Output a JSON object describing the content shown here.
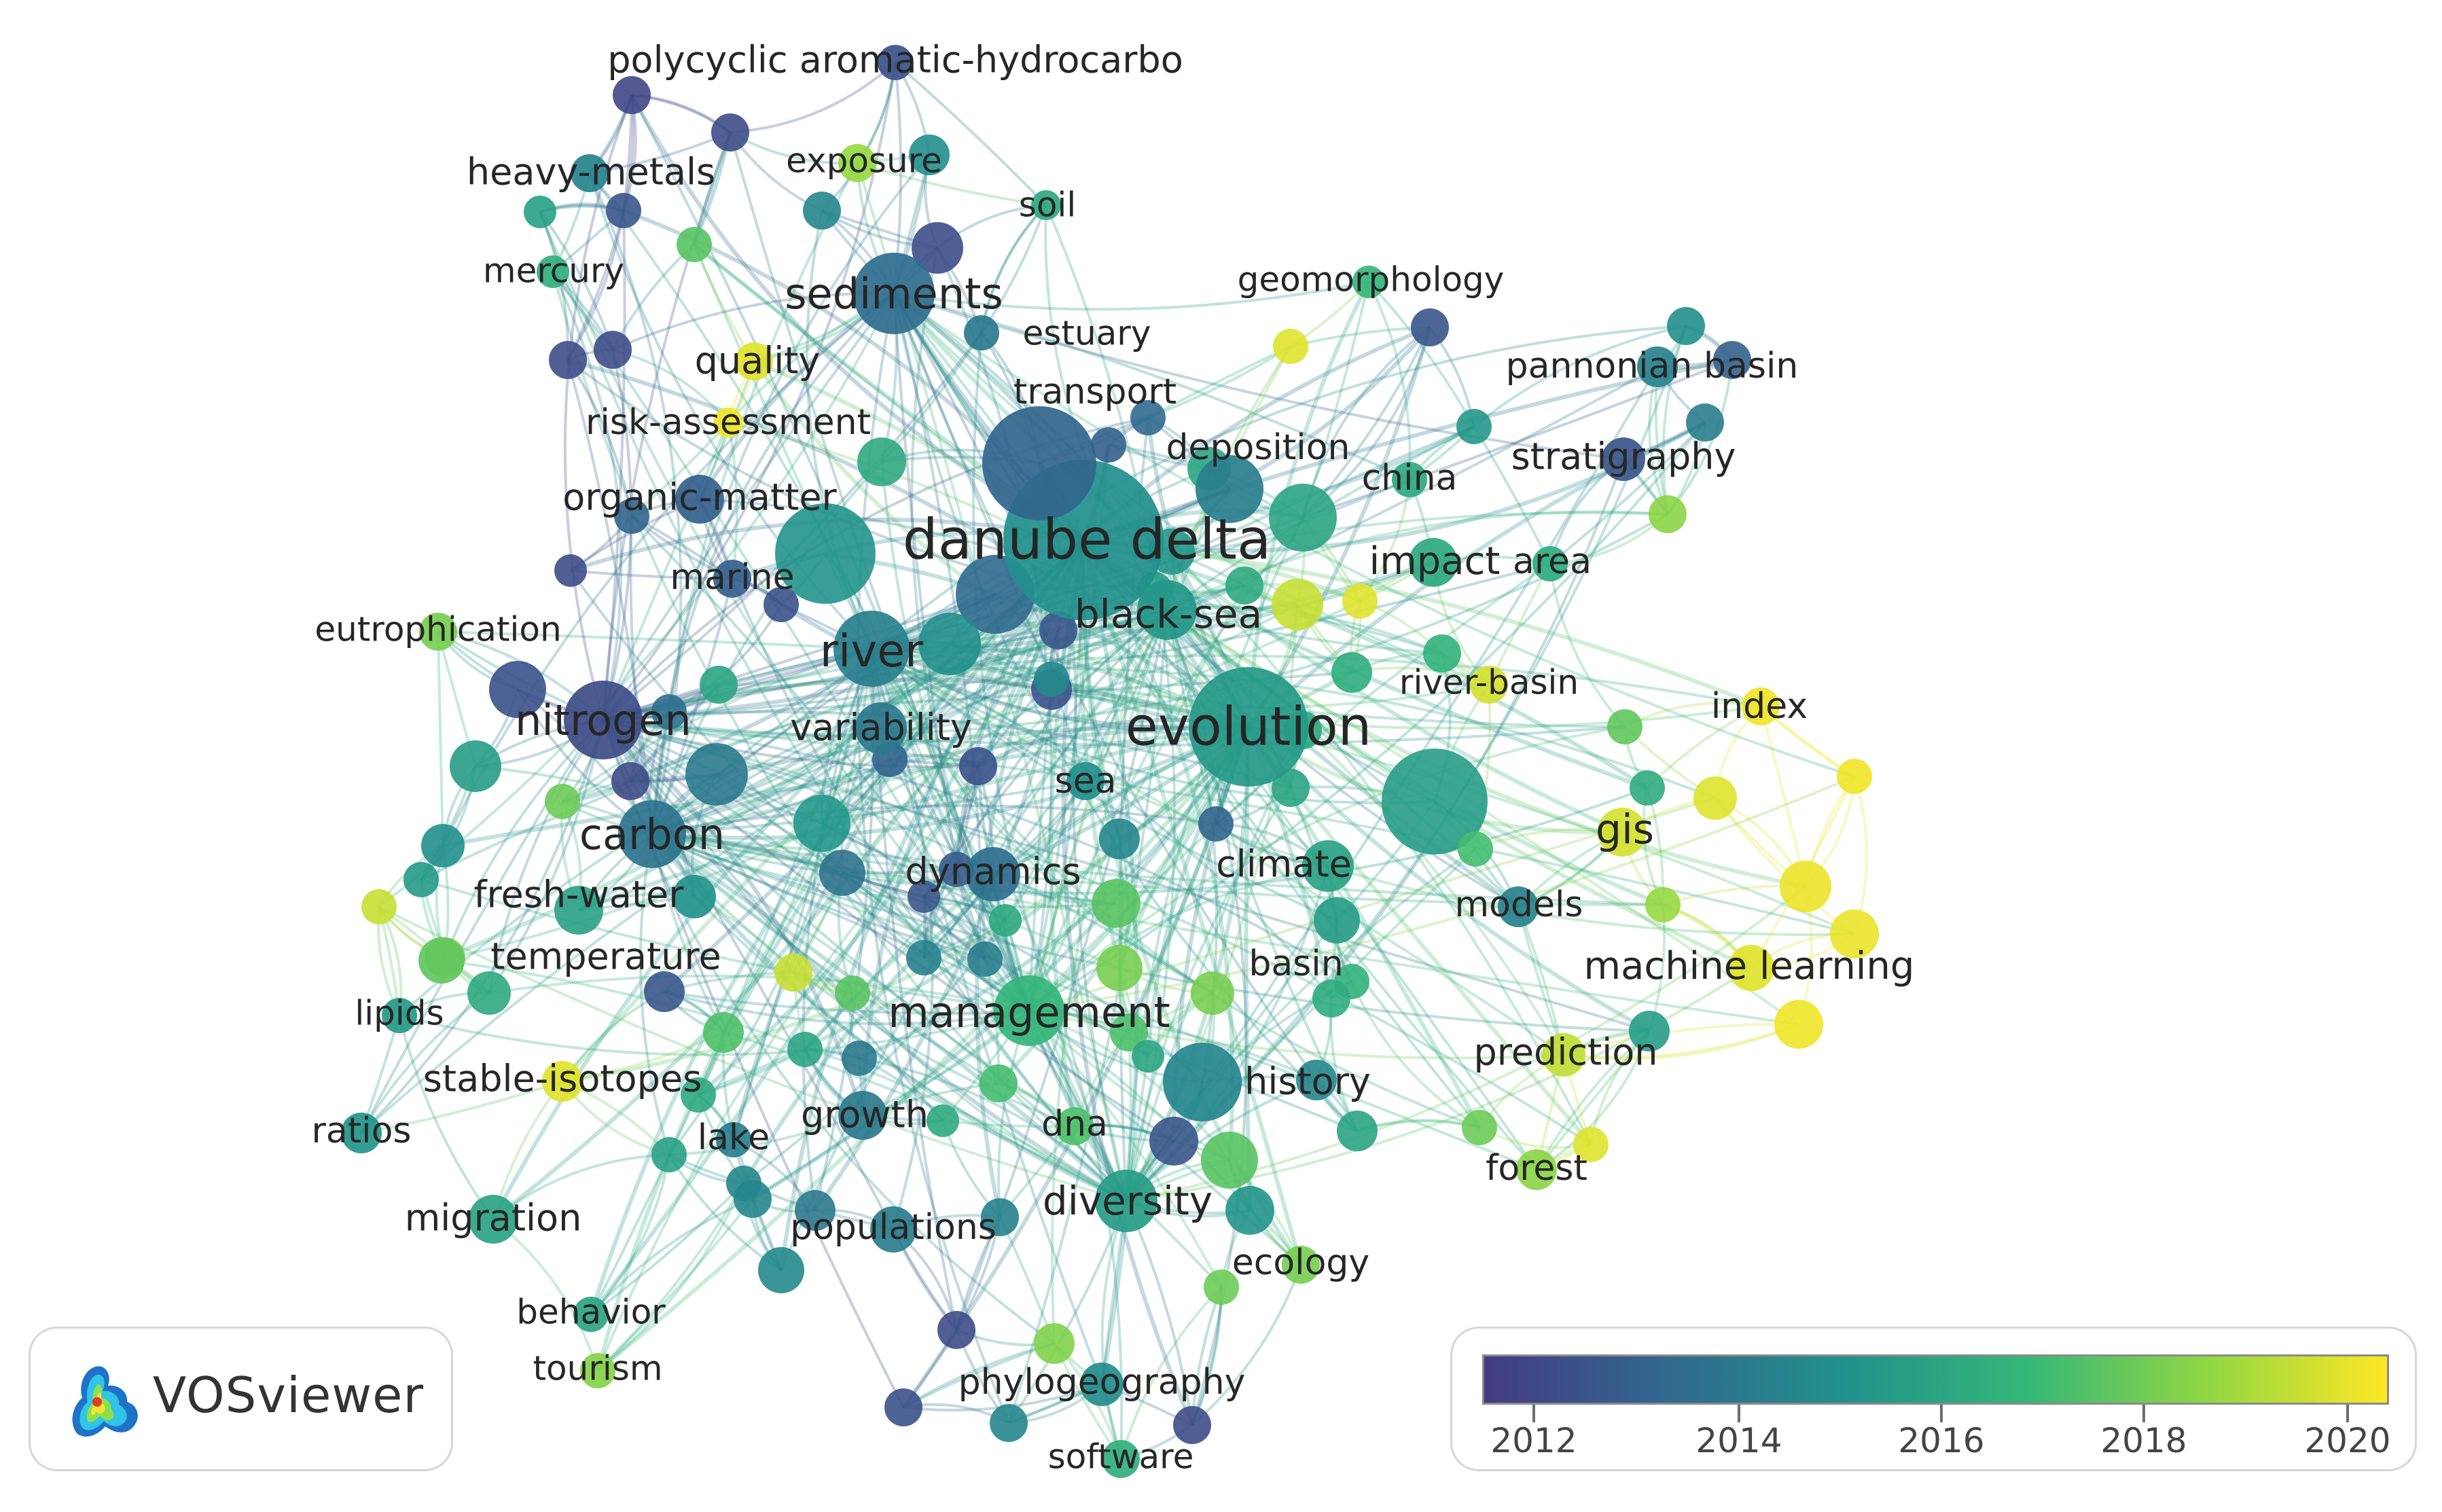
{
  "app_name": "VOSviewer",
  "colors": {
    "scale": [
      "#443a83",
      "#31688e",
      "#21918c",
      "#35b779",
      "#90d743",
      "#fde725"
    ],
    "label": "#262626",
    "link_opacity": 0.28
  },
  "legend": {
    "ticks": [
      "2012",
      "2014",
      "2016",
      "2018",
      "2020"
    ],
    "min_year": 2011.5,
    "max_year": 2020.5
  },
  "keywords": [
    {
      "label": "danube delta",
      "year": 2015.0,
      "weight": 10
    },
    {
      "label": "evolution",
      "year": 2015.5,
      "weight": 8
    },
    {
      "label": "river",
      "year": 2014.3,
      "weight": 6
    },
    {
      "label": "sediments",
      "year": 2013.5,
      "weight": 6
    },
    {
      "label": "nitrogen",
      "year": 2012.2,
      "weight": 6
    },
    {
      "label": "carbon",
      "year": 2013.8,
      "weight": 5
    },
    {
      "label": "management",
      "year": 2016.8,
      "weight": 5
    },
    {
      "label": "black-sea",
      "year": 2015.4,
      "weight": 4
    },
    {
      "label": "diversity",
      "year": 2015.6,
      "weight": 4
    },
    {
      "label": "variability",
      "year": 2014.0,
      "weight": 3
    },
    {
      "label": "organic-matter",
      "year": 2013.0,
      "weight": 3
    },
    {
      "label": "dynamics",
      "year": 2013.6,
      "weight": 3
    },
    {
      "label": "climate",
      "year": 2015.9,
      "weight": 3
    },
    {
      "label": "gis",
      "year": 2019.8,
      "weight": 3
    },
    {
      "label": "machine learning",
      "year": 2020.0,
      "weight": 3
    },
    {
      "label": "fresh-water",
      "year": 2015.2,
      "weight": 3
    },
    {
      "label": "temperature",
      "year": 2017.8,
      "weight": 3
    },
    {
      "label": "history",
      "year": 2014.6,
      "weight": 3
    },
    {
      "label": "migration",
      "year": 2016.0,
      "weight": 3
    },
    {
      "label": "growth",
      "year": 2014.0,
      "weight": 3
    },
    {
      "label": "impact",
      "year": 2016.2,
      "weight": 3
    },
    {
      "label": "deposition",
      "year": 2014.2,
      "weight": 3
    },
    {
      "label": "transport",
      "year": 2013.2,
      "weight": 3
    },
    {
      "label": "heavy-metals",
      "year": 2014.5,
      "weight": 2
    },
    {
      "label": "quality",
      "year": 2020.0,
      "weight": 2
    },
    {
      "label": "polycyclic aromatic-hydrocarbo",
      "year": 2012.4,
      "weight": 2
    },
    {
      "label": "exposure",
      "year": 2018.8,
      "weight": 2
    },
    {
      "label": "soil",
      "year": 2016.2,
      "weight": 2
    },
    {
      "label": "mercury",
      "year": 2016.5,
      "weight": 2
    },
    {
      "label": "estuary",
      "year": 2014.0,
      "weight": 2
    },
    {
      "label": "risk-assessment",
      "year": 2020.3,
      "weight": 2
    },
    {
      "label": "marine",
      "year": 2013.0,
      "weight": 2
    },
    {
      "label": "eutrophication",
      "year": 2018.2,
      "weight": 2
    },
    {
      "label": "geomorphology",
      "year": 2016.8,
      "weight": 2
    },
    {
      "label": "pannonian basin",
      "year": 2014.4,
      "weight": 2
    },
    {
      "label": "stratigraphy",
      "year": 2012.6,
      "weight": 2
    },
    {
      "label": "china",
      "year": 2016.2,
      "weight": 2
    },
    {
      "label": "area",
      "year": 2016.4,
      "weight": 2
    },
    {
      "label": "river-basin",
      "year": 2019.8,
      "weight": 2
    },
    {
      "label": "index",
      "year": 2020.3,
      "weight": 2
    },
    {
      "label": "sea",
      "year": 2015.0,
      "weight": 2
    },
    {
      "label": "models",
      "year": 2014.4,
      "weight": 2
    },
    {
      "label": "basin",
      "year": 2015.6,
      "weight": 2
    },
    {
      "label": "prediction",
      "year": 2019.5,
      "weight": 2
    },
    {
      "label": "forest",
      "year": 2018.6,
      "weight": 2
    },
    {
      "label": "lipids",
      "year": 2015.5,
      "weight": 2
    },
    {
      "label": "stable-isotopes",
      "year": 2020.0,
      "weight": 2
    },
    {
      "label": "ratios",
      "year": 2015.3,
      "weight": 2
    },
    {
      "label": "lake",
      "year": 2014.3,
      "weight": 2
    },
    {
      "label": "dna",
      "year": 2017.4,
      "weight": 2
    },
    {
      "label": "populations",
      "year": 2014.2,
      "weight": 2
    },
    {
      "label": "ecology",
      "year": 2018.2,
      "weight": 2
    },
    {
      "label": "behavior",
      "year": 2016.0,
      "weight": 2
    },
    {
      "label": "tourism",
      "year": 2018.5,
      "weight": 2
    },
    {
      "label": "phylogeography",
      "year": 2014.9,
      "weight": 2
    },
    {
      "label": "software",
      "year": 2016.5,
      "weight": 2
    }
  ]
}
